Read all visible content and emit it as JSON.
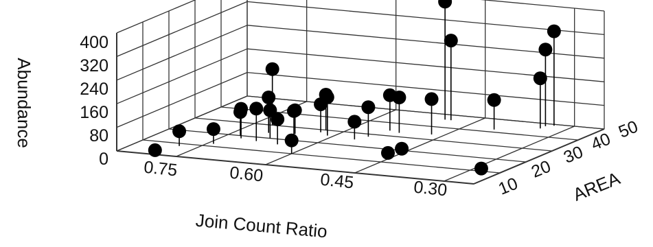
{
  "chart_data": {
    "type": "scatter",
    "projection": "3d",
    "title": "",
    "xlabel": "Join Count Ratio",
    "ylabel": "AREA",
    "zlabel": "Abundance",
    "xlim": [
      0.85,
      0.25
    ],
    "ylim": [
      0,
      50
    ],
    "zlim": [
      0,
      400
    ],
    "x_ticks": [
      "0.75",
      "0.60",
      "0.45",
      "0.30"
    ],
    "y_ticks": [
      "10",
      "20",
      "30",
      "40",
      "50"
    ],
    "z_ticks": [
      "0",
      "80",
      "160",
      "240",
      "320",
      "400"
    ],
    "grid": true,
    "legend": "none",
    "colors": {
      "points": "#000000",
      "grid": "#333333",
      "background": "#ffffff"
    },
    "points": [
      {
        "x": 0.79,
        "y": 1,
        "z": 10
      },
      {
        "x": 0.78,
        "y": 8,
        "z": 50
      },
      {
        "x": 0.74,
        "y": 12,
        "z": 50
      },
      {
        "x": 0.73,
        "y": 20,
        "z": 80
      },
      {
        "x": 0.72,
        "y": 18,
        "z": 100
      },
      {
        "x": 0.72,
        "y": 30,
        "z": 190
      },
      {
        "x": 0.7,
        "y": 24,
        "z": 120
      },
      {
        "x": 0.69,
        "y": 17,
        "z": 110
      },
      {
        "x": 0.68,
        "y": 20,
        "z": 95
      },
      {
        "x": 0.66,
        "y": 25,
        "z": 80
      },
      {
        "x": 0.65,
        "y": 16,
        "z": 85
      },
      {
        "x": 0.64,
        "y": 20,
        "z": 100
      },
      {
        "x": 0.63,
        "y": 28,
        "z": 95
      },
      {
        "x": 0.63,
        "y": 30,
        "z": 120
      },
      {
        "x": 0.61,
        "y": 26,
        "z": 130
      },
      {
        "x": 0.6,
        "y": 10,
        "z": 45
      },
      {
        "x": 0.56,
        "y": 25,
        "z": 60
      },
      {
        "x": 0.55,
        "y": 28,
        "z": 100
      },
      {
        "x": 0.54,
        "y": 34,
        "z": 120
      },
      {
        "x": 0.52,
        "y": 33,
        "z": 120
      },
      {
        "x": 0.46,
        "y": 15,
        "z": 10
      },
      {
        "x": 0.45,
        "y": 18,
        "z": 15
      },
      {
        "x": 0.47,
        "y": 34,
        "z": 120
      },
      {
        "x": 0.49,
        "y": 46,
        "z": 270
      },
      {
        "x": 0.5,
        "y": 46,
        "z": 400
      },
      {
        "x": 0.4,
        "y": 42,
        "z": 100
      },
      {
        "x": 0.29,
        "y": 12,
        "z": 0
      },
      {
        "x": 0.34,
        "y": 46,
        "z": 170
      },
      {
        "x": 0.34,
        "y": 48,
        "z": 260
      },
      {
        "x": 0.33,
        "y": 49,
        "z": 320
      }
    ]
  }
}
